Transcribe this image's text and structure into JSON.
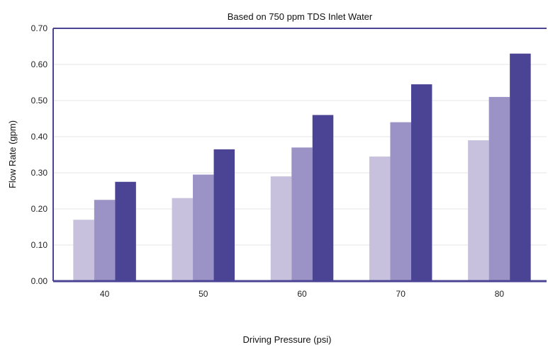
{
  "chart_data": {
    "type": "bar",
    "title": "Based on 750 ppm TDS Inlet Water",
    "xlabel": "Driving Pressure (psi)",
    "ylabel": "Flow Rate (gpm)",
    "categories": [
      "40",
      "50",
      "60",
      "70",
      "80"
    ],
    "series": [
      {
        "values": [
          0.17,
          0.23,
          0.29,
          0.345,
          0.39
        ],
        "color": "#c7c1dd"
      },
      {
        "values": [
          0.225,
          0.295,
          0.37,
          0.44,
          0.51
        ],
        "color": "#9b92c6"
      },
      {
        "values": [
          0.275,
          0.365,
          0.46,
          0.545,
          0.63
        ],
        "color": "#4b4495"
      }
    ],
    "ylim": [
      0,
      0.7
    ],
    "yticks": [
      "0.00",
      "0.10",
      "0.20",
      "0.30",
      "0.40",
      "0.50",
      "0.60",
      "0.70"
    ],
    "grid": true,
    "legend": "none",
    "colors": {
      "axis": "#4b4495",
      "grid": "#e6e6e6"
    }
  }
}
